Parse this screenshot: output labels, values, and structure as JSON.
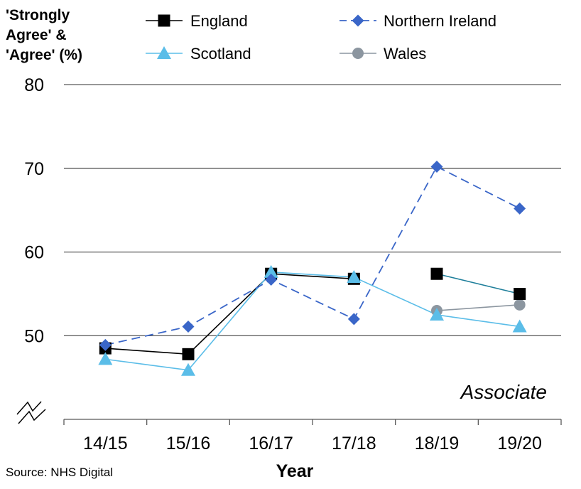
{
  "chart_data": {
    "type": "line",
    "title": "",
    "ylabel": [
      "'Strongly",
      "Agree' &",
      "'Agree' (%)"
    ],
    "xlabel": "Year",
    "annotation": "Associate",
    "source": "Source: NHS Digital",
    "categories": [
      "14/15",
      "15/16",
      "16/17",
      "17/18",
      "18/19",
      "19/20"
    ],
    "ylim": [
      45,
      80
    ],
    "yticks": [
      50,
      60,
      70,
      80
    ],
    "axis_break": true,
    "grid": true,
    "legend_position": "top",
    "series": [
      {
        "name": "England",
        "values": [
          48.5,
          47.8,
          57.4,
          56.8,
          57.4,
          55.0
        ],
        "segments": [
          [
            0,
            3
          ],
          [
            4,
            5
          ]
        ],
        "color": "#000000",
        "line_color": "#1f7f9b",
        "marker": "square",
        "dash": false
      },
      {
        "name": "Northern Ireland",
        "values": [
          48.9,
          51.1,
          56.7,
          52.0,
          70.2,
          65.2
        ],
        "segments": [
          [
            0,
            5
          ]
        ],
        "color": "#3a66c8",
        "marker": "diamond",
        "dash": true
      },
      {
        "name": "Scotland",
        "values": [
          47.2,
          45.9,
          57.6,
          57.0,
          52.5,
          51.1
        ],
        "segments": [
          [
            0,
            5
          ]
        ],
        "color": "#5bbde8",
        "marker": "triangle",
        "dash": false
      },
      {
        "name": "Wales",
        "values": [
          null,
          null,
          null,
          null,
          53.0,
          53.7
        ],
        "segments": [
          [
            4,
            5
          ]
        ],
        "color": "#8c96a0",
        "marker": "circle",
        "dash": false
      }
    ]
  }
}
